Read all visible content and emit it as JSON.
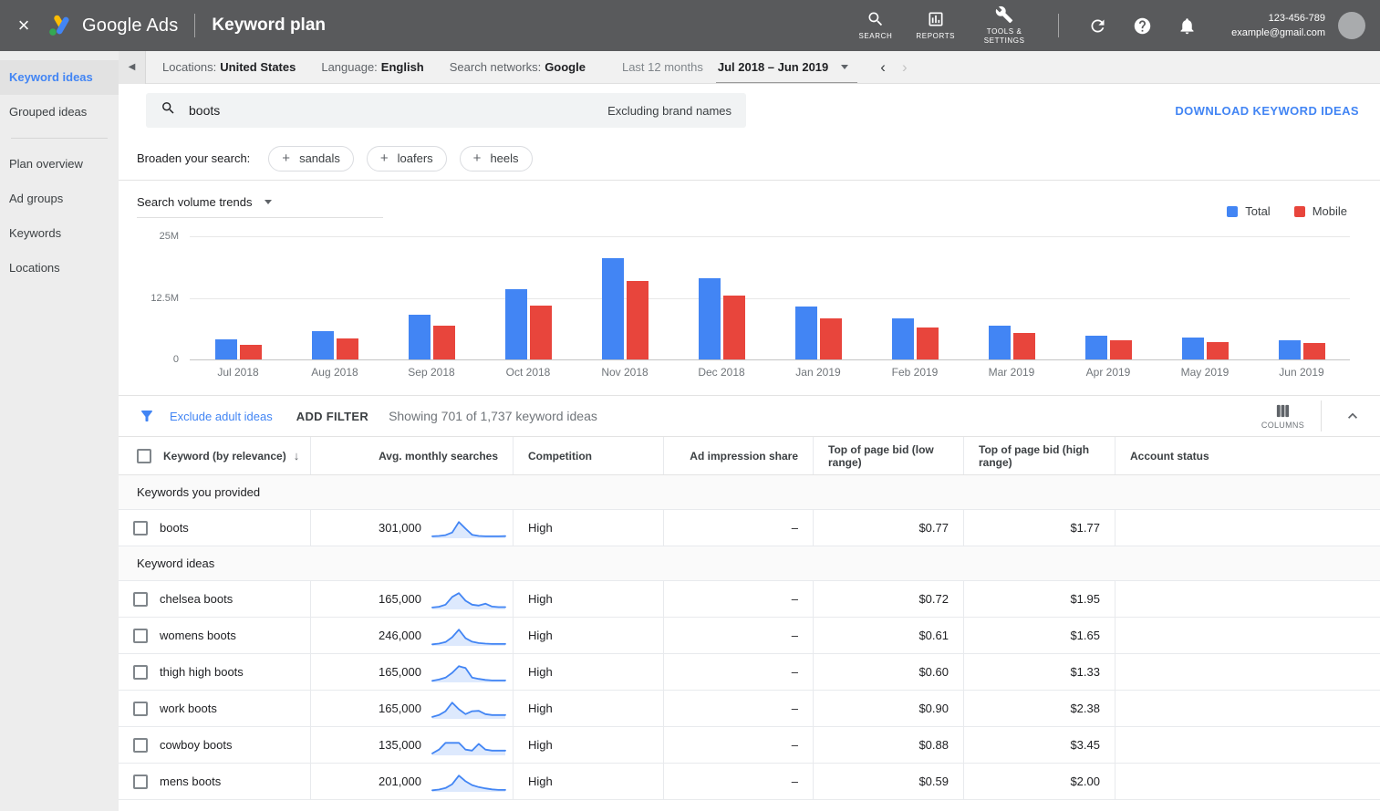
{
  "topbar": {
    "close_icon": "×",
    "brand": "Google Ads",
    "page_title": "Keyword plan",
    "nav": [
      {
        "label": "SEARCH",
        "icon": "search-icon"
      },
      {
        "label": "REPORTS",
        "icon": "reports-icon"
      },
      {
        "label": "TOOLS & SETTINGS",
        "icon": "wrench-icon"
      }
    ],
    "account_id": "123-456-789",
    "account_email": "example@gmail.com"
  },
  "sidebar": {
    "items": [
      {
        "label": "Keyword ideas",
        "active": true
      },
      {
        "label": "Grouped ideas",
        "active": false
      },
      {
        "divider": true
      },
      {
        "label": "Plan overview",
        "active": false
      },
      {
        "label": "Ad groups",
        "active": false
      },
      {
        "label": "Keywords",
        "active": false
      },
      {
        "label": "Locations",
        "active": false
      }
    ]
  },
  "filterbar": {
    "back_icon": "◀",
    "filters": [
      {
        "label": "Locations:",
        "value": "United States"
      },
      {
        "label": "Language:",
        "value": "English"
      },
      {
        "label": "Search networks:",
        "value": "Google"
      }
    ],
    "date_label": "Last 12 months",
    "date_range": "Jul 2018 – Jun 2019",
    "prev_icon": "‹",
    "next_icon": "›"
  },
  "search": {
    "query": "boots",
    "suffix": "Excluding brand names",
    "download_label": "DOWNLOAD KEYWORD IDEAS"
  },
  "broaden": {
    "label": "Broaden your search:",
    "chips": [
      {
        "plus": "+",
        "label": "sandals"
      },
      {
        "plus": "+",
        "label": "loafers"
      },
      {
        "plus": "+",
        "label": "heels"
      }
    ]
  },
  "chart_data": {
    "type": "bar",
    "title": "Search volume trends",
    "categories": [
      "Jul 2018",
      "Aug 2018",
      "Sep 2018",
      "Oct 2018",
      "Nov 2018",
      "Dec 2018",
      "Jan 2019",
      "Feb 2019",
      "Mar 2019",
      "Apr 2019",
      "May 2019",
      "Jun 2019"
    ],
    "series": [
      {
        "name": "Total",
        "color": "#4285f4",
        "values": [
          4.0,
          5.7,
          9.0,
          14.2,
          20.5,
          16.5,
          10.8,
          8.3,
          6.9,
          4.9,
          4.5,
          3.9
        ]
      },
      {
        "name": "Mobile",
        "color": "#e8453c",
        "values": [
          3.0,
          4.3,
          6.9,
          10.9,
          15.9,
          12.9,
          8.4,
          6.5,
          5.4,
          3.8,
          3.5,
          3.4
        ]
      }
    ],
    "value_unit": "millions of searches",
    "ylim": [
      0,
      25
    ],
    "yticks": [
      {
        "value": 25,
        "label": "25M"
      },
      {
        "value": 12.5,
        "label": "12.5M"
      },
      {
        "value": 0,
        "label": "0"
      }
    ],
    "legend_position": "top-right",
    "grid": true
  },
  "table_controls": {
    "exclude_link": "Exclude adult ideas",
    "add_filter": "ADD FILTER",
    "showing": "Showing 701 of 1,737 keyword ideas",
    "columns_label": "COLUMNS"
  },
  "table": {
    "sort_icon": "↓",
    "columns": [
      {
        "key": "keyword",
        "label": "Keyword (by relevance)",
        "align": "left"
      },
      {
        "key": "searches",
        "label": "Avg. monthly searches",
        "align": "right"
      },
      {
        "key": "competition",
        "label": "Competition",
        "align": "left"
      },
      {
        "key": "impression",
        "label": "Ad impression share",
        "align": "right"
      },
      {
        "key": "bid_low",
        "label": "Top of page bid (low range)",
        "align": "right"
      },
      {
        "key": "bid_high",
        "label": "Top of page bid (high range)",
        "align": "right"
      },
      {
        "key": "status",
        "label": "Account status",
        "align": "left"
      }
    ],
    "sections": [
      {
        "title": "Keywords you provided",
        "rows": [
          {
            "keyword": "boots",
            "searches": "301,000",
            "spark": [
              1,
              1.2,
              1.6,
              3,
              8.5,
              5,
              1.8,
              1.2,
              1,
              1,
              1,
              1.1
            ],
            "competition": "High",
            "impression": "–",
            "bid_low": "$0.77",
            "bid_high": "$1.77",
            "status": ""
          }
        ]
      },
      {
        "title": "Keyword ideas",
        "rows": [
          {
            "keyword": "chelsea boots",
            "searches": "165,000",
            "spark": [
              1,
              1.4,
              2.5,
              6.5,
              8.5,
              4.5,
              2.5,
              2,
              3,
              1.5,
              1.2,
              1.2
            ],
            "competition": "High",
            "impression": "–",
            "bid_low": "$0.72",
            "bid_high": "$1.95",
            "status": ""
          },
          {
            "keyword": "womens boots",
            "searches": "246,000",
            "spark": [
              0.8,
              1.2,
              2,
              4.5,
              8.5,
              4,
              2.2,
              1.5,
              1.2,
              1,
              1,
              1
            ],
            "competition": "High",
            "impression": "–",
            "bid_low": "$0.61",
            "bid_high": "$1.65",
            "status": ""
          },
          {
            "keyword": "thigh high boots",
            "searches": "165,000",
            "spark": [
              0.8,
              1.5,
              2.5,
              5,
              8.5,
              7.5,
              2.5,
              1.8,
              1.3,
              1,
              1,
              1
            ],
            "competition": "High",
            "impression": "–",
            "bid_low": "$0.60",
            "bid_high": "$1.33",
            "status": ""
          },
          {
            "keyword": "work boots",
            "searches": "165,000",
            "spark": [
              1,
              2,
              4,
              8.5,
              5,
              2.5,
              4,
              4.2,
              2.5,
              2,
              2,
              2
            ],
            "competition": "High",
            "impression": "–",
            "bid_low": "$0.90",
            "bid_high": "$2.38",
            "status": ""
          },
          {
            "keyword": "cowboy boots",
            "searches": "135,000",
            "spark": [
              1,
              3,
              6.5,
              6.5,
              6.5,
              3,
              2.5,
              6,
              3,
              2.5,
              2.5,
              2.5
            ],
            "competition": "High",
            "impression": "–",
            "bid_low": "$0.88",
            "bid_high": "$3.45",
            "status": ""
          },
          {
            "keyword": "mens boots",
            "searches": "201,000",
            "spark": [
              0.8,
              1.2,
              2,
              4,
              8.5,
              5.5,
              3.5,
              2.5,
              1.8,
              1.3,
              1,
              1
            ],
            "competition": "High",
            "impression": "–",
            "bid_low": "$0.59",
            "bid_high": "$2.00",
            "status": ""
          }
        ]
      }
    ]
  }
}
